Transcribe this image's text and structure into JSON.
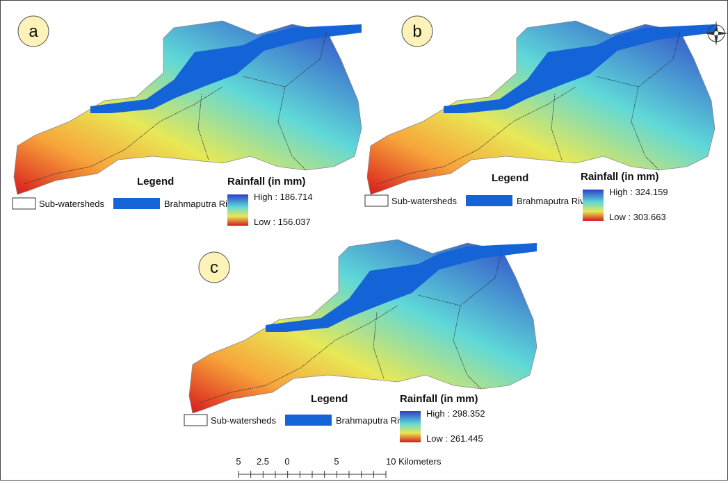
{
  "panels": [
    {
      "label": "a",
      "legend": {
        "title": "Legend",
        "items": [
          "Sub-watersheds",
          "Brahmaputra River"
        ]
      },
      "rainfall": {
        "title": "Rainfall (in mm)",
        "high": "High : 186.714",
        "low": "Low : 156.037"
      }
    },
    {
      "label": "b",
      "legend": {
        "title": "Legend",
        "items": [
          "Sub-watersheds",
          "Brahmaputra River"
        ]
      },
      "rainfall": {
        "title": "Rainfall (in mm)",
        "high": "High : 324.159",
        "low": "Low : 303.663"
      }
    },
    {
      "label": "c",
      "legend": {
        "title": "Legend",
        "items": [
          "Sub-watersheds",
          "Brahmaputra River"
        ]
      },
      "rainfall": {
        "title": "Rainfall (in mm)",
        "high": "High : 298.352",
        "low": "Low : 261.445"
      }
    }
  ],
  "scale_bar": {
    "labels": [
      "5",
      "2.5",
      "0",
      "5",
      "10 Kilometers"
    ]
  }
}
